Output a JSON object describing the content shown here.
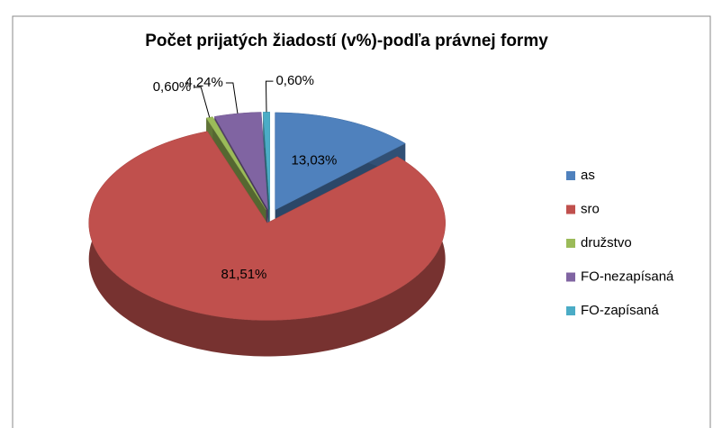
{
  "chart_data": {
    "type": "pie",
    "title": "Počet prijatých žiadostí (v%)-podľa právnej formy",
    "categories": [
      "as",
      "sro",
      "družstvo",
      "FO-nezapísaná",
      "FO-zapísaná"
    ],
    "values": [
      13.03,
      81.51,
      0.6,
      4.24,
      0.6
    ],
    "value_labels": [
      "13,03%",
      "81,51%",
      "0,60%",
      "4,24%",
      "0,60%"
    ],
    "colors": [
      "#4f81bd",
      "#c0504d",
      "#9bbb59",
      "#8064a2",
      "#4bacc6"
    ],
    "legend": "right"
  }
}
